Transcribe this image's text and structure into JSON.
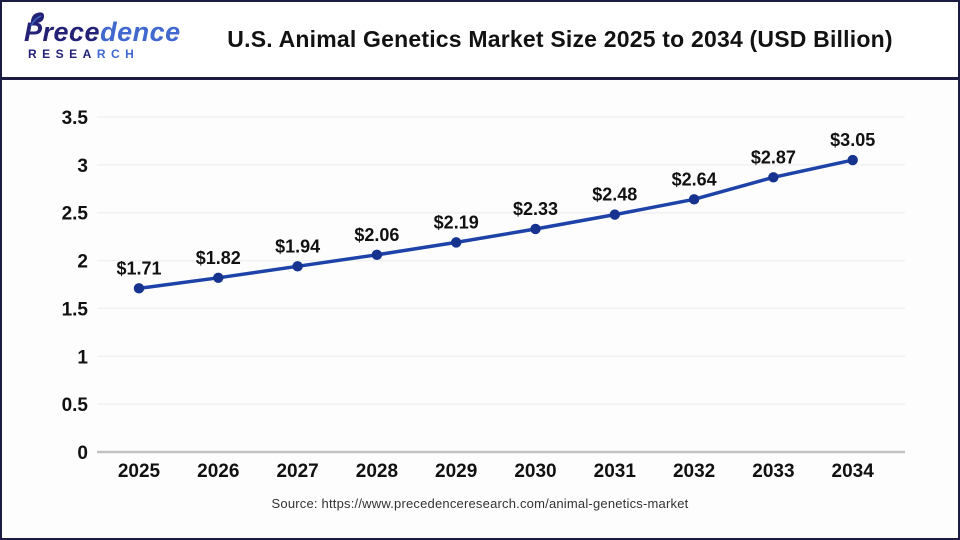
{
  "header": {
    "logo": {
      "brand_a": "Prece",
      "brand_b": "dence",
      "sub_a": "RESEA",
      "sub_b": "RCH"
    },
    "title": "U.S. Animal Genetics Market Size 2025 to 2034 (USD Billion)"
  },
  "footer": {
    "source": "Source: https://www.precedenceresearch.com/animal-genetics-market"
  },
  "colors": {
    "line": "#1e43a8",
    "marker": "#16338f",
    "frame_navy": "#1c1b42",
    "grid": "#f1f1f1",
    "axis": "#c2c2c2",
    "text": "#111111",
    "logo_navy": "#232277",
    "logo_blue": "#4168cf"
  },
  "chart_data": {
    "type": "line",
    "title": "U.S. Animal Genetics Market Size 2025 to 2034 (USD Billion)",
    "unit": "USD Billion",
    "categories": [
      "2025",
      "2026",
      "2027",
      "2028",
      "2029",
      "2030",
      "2031",
      "2032",
      "2033",
      "2034"
    ],
    "values": [
      1.71,
      1.82,
      1.94,
      2.06,
      2.19,
      2.33,
      2.48,
      2.64,
      2.87,
      3.05
    ],
    "labels": [
      "$1.71",
      "$1.82",
      "$1.94",
      "$2.06",
      "$2.19",
      "$2.33",
      "$2.48",
      "$2.64",
      "$2.87",
      "$3.05"
    ],
    "xlabel": "",
    "ylabel": "",
    "ylim": [
      0,
      3.5
    ],
    "yticks": [
      0,
      0.5,
      1,
      1.5,
      2,
      2.5,
      3,
      3.5
    ],
    "grid": "horizontal",
    "legend": "none"
  }
}
